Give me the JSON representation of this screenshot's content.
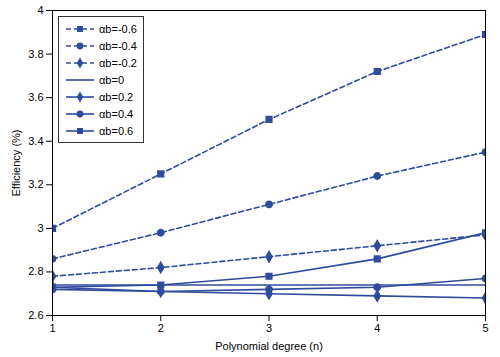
{
  "chart_data": {
    "type": "line",
    "x_label": "Polynomial degree (n)",
    "y_label": "Efficiency (%)",
    "x": [
      1,
      2,
      3,
      4,
      5
    ],
    "xlim": [
      1,
      5
    ],
    "xticks": [
      1,
      2,
      3,
      4,
      5
    ],
    "ylim": [
      2.6,
      4
    ],
    "yticks": [
      2.6,
      2.8,
      3,
      3.2,
      3.4,
      3.6,
      3.8,
      4
    ],
    "grid": false,
    "legend": "top-left",
    "series": [
      {
        "name": "αb=-0.6",
        "color": "#2f4b9c",
        "marker": "square",
        "line_style": "dashed",
        "values": [
          3.0,
          3.25,
          3.5,
          3.72,
          3.89
        ]
      },
      {
        "name": "αb=-0.4",
        "color": "#2f4b9c",
        "marker": "circle",
        "line_style": "dashed",
        "values": [
          2.86,
          2.98,
          3.11,
          3.24,
          3.35
        ]
      },
      {
        "name": "αb=-0.2",
        "color": "#2f4b9c",
        "marker": "diamond",
        "line_style": "dashed",
        "values": [
          2.78,
          2.82,
          2.87,
          2.92,
          2.97
        ]
      },
      {
        "name": "αb=0",
        "color": "#2f4b9c",
        "marker": "none",
        "line_style": "solid",
        "values": [
          2.74,
          2.74,
          2.74,
          2.74,
          2.74
        ]
      },
      {
        "name": "αb=0.2",
        "color": "#2f4b9c",
        "marker": "diamond",
        "line_style": "solid",
        "values": [
          2.73,
          2.71,
          2.7,
          2.69,
          2.68
        ]
      },
      {
        "name": "αb=0.4",
        "color": "#2f4b9c",
        "marker": "circle",
        "line_style": "solid",
        "values": [
          2.72,
          2.71,
          2.72,
          2.73,
          2.77
        ]
      },
      {
        "name": "αb=0.6",
        "color": "#2f4b9c",
        "marker": "square",
        "line_style": "solid",
        "values": [
          2.73,
          2.74,
          2.78,
          2.86,
          2.98
        ]
      }
    ]
  }
}
